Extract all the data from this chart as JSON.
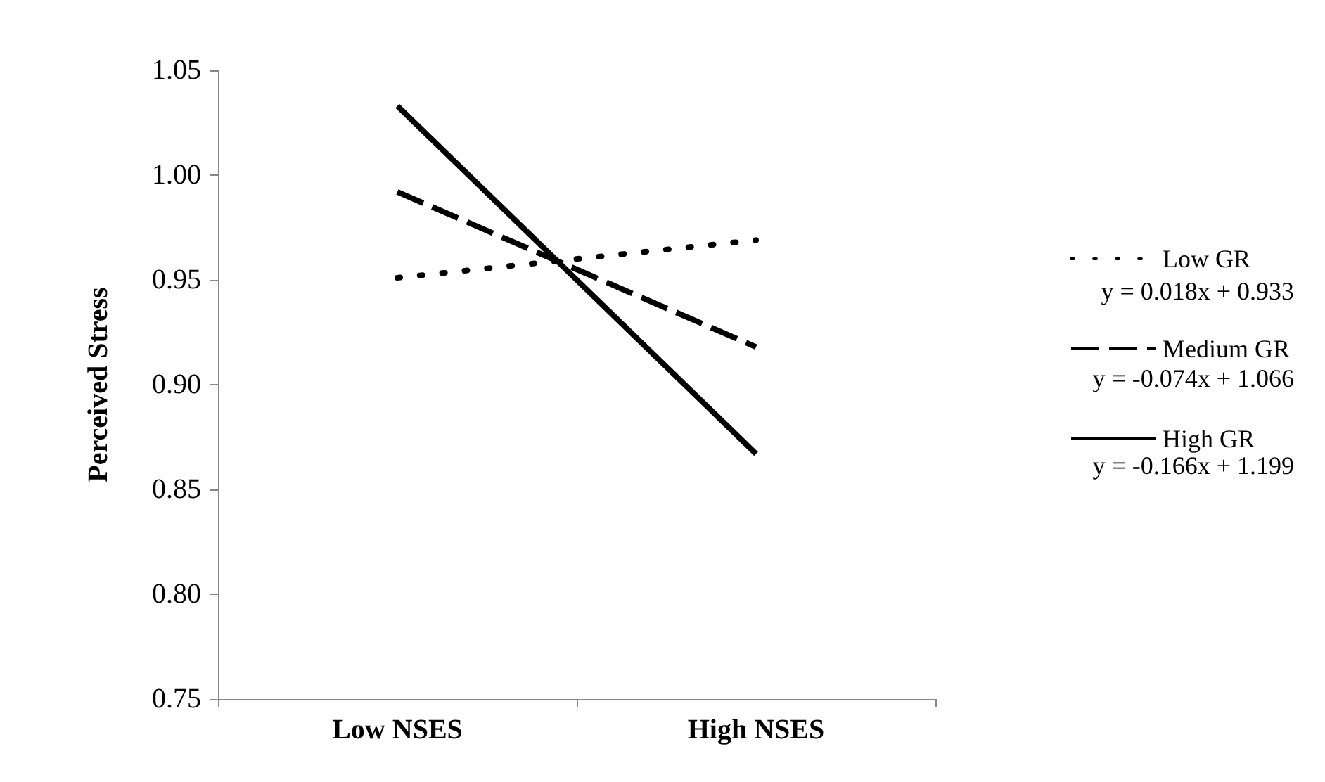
{
  "chart_data": {
    "type": "line",
    "ylabel": "Perceived Stress",
    "categories": [
      "Low NSES",
      "High NSES"
    ],
    "series": [
      {
        "name": "Low GR",
        "color": "#000000",
        "line_style": "dotted",
        "values": [
          0.951,
          0.969
        ]
      },
      {
        "name": "Medium GR",
        "color": "#000000",
        "line_style": "dashed",
        "values": [
          0.992,
          0.918
        ]
      },
      {
        "name": "High GR",
        "color": "#000000",
        "line_style": "solid",
        "values": [
          1.033,
          0.867
        ]
      }
    ],
    "ylim": [
      0.75,
      1.05
    ],
    "yticks": [
      {
        "value": 0.75,
        "label": "0.75"
      },
      {
        "value": 0.8,
        "label": "0.80"
      },
      {
        "value": 0.85,
        "label": "0.85"
      },
      {
        "value": 0.9,
        "label": "0.90"
      },
      {
        "value": 0.95,
        "label": "0.95"
      },
      {
        "value": 1.0,
        "label": "1.00"
      },
      {
        "value": 1.05,
        "label": "1.05"
      }
    ],
    "annotations": [
      "y = 0.018x + 0.933",
      "y = -0.074x + 1.066",
      "y = -0.166x + 1.199"
    ],
    "legend": "right",
    "marker": "none",
    "grid": false
  }
}
